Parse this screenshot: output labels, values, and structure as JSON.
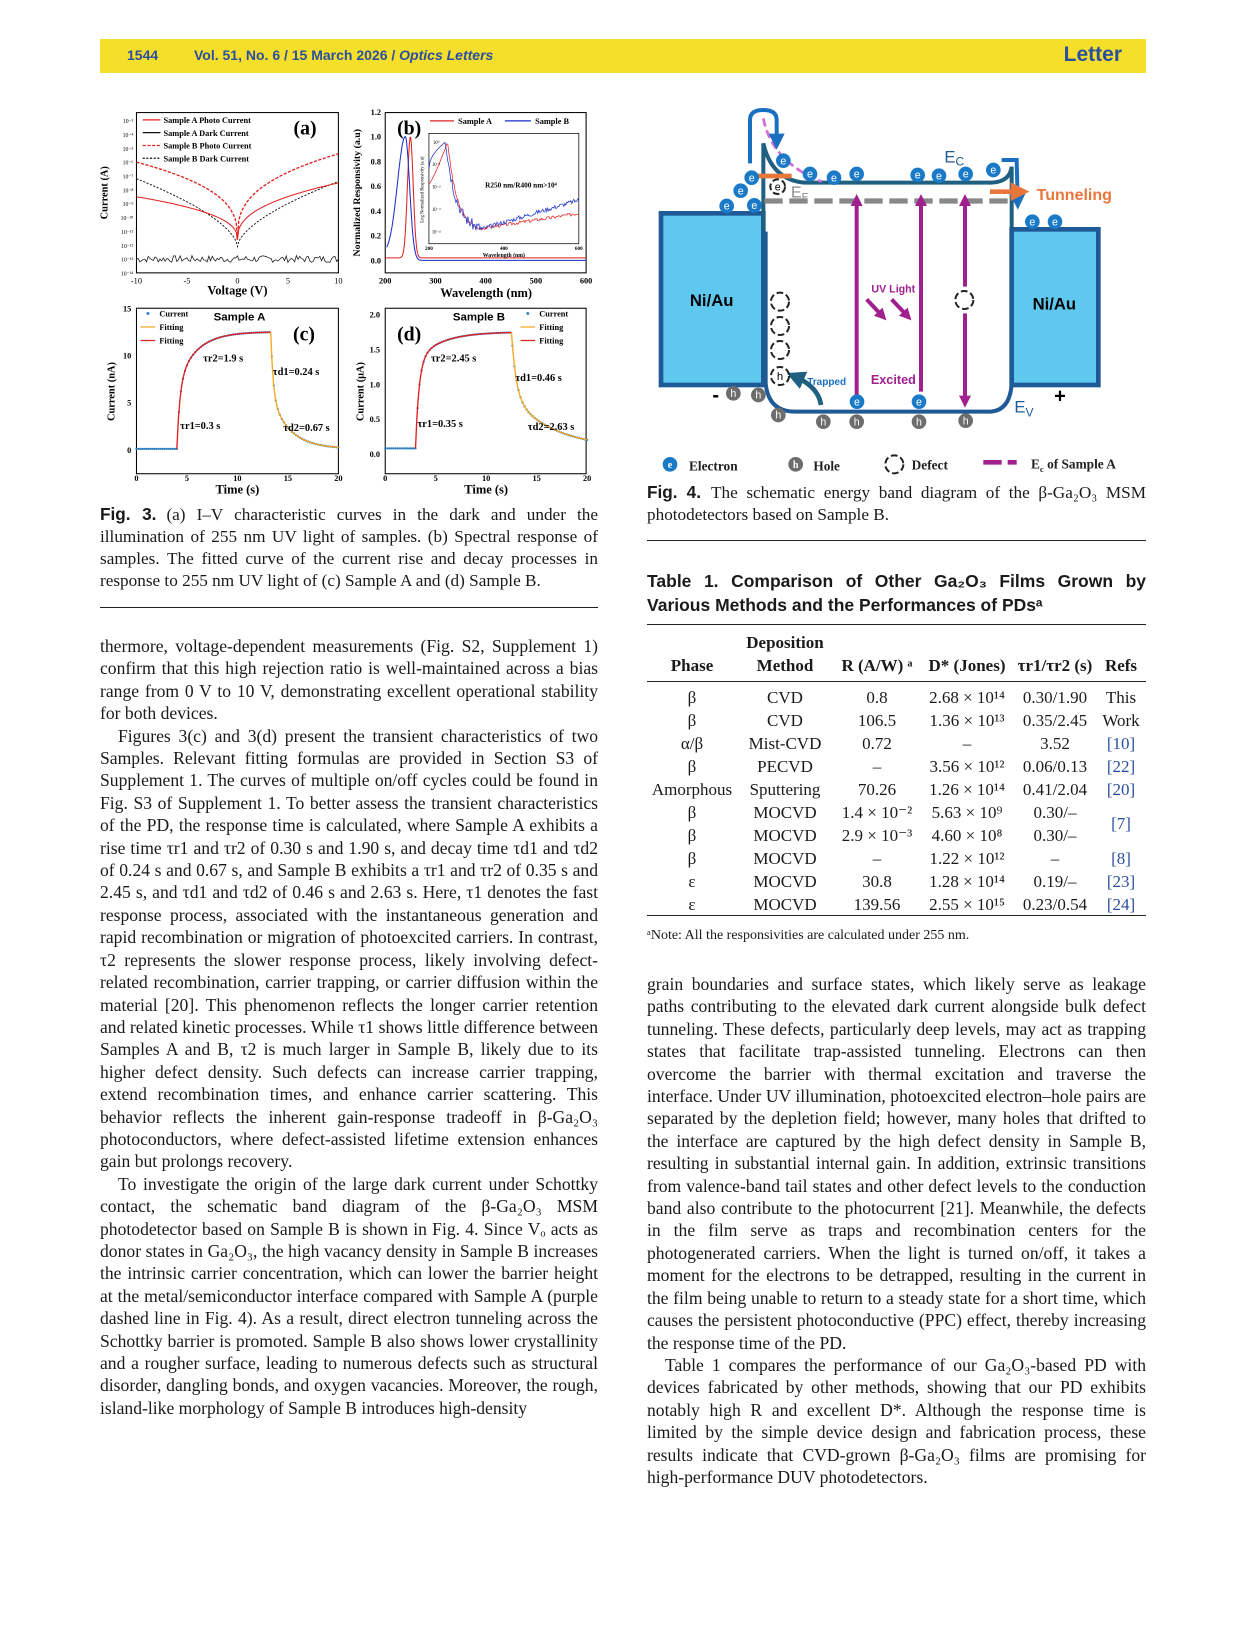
{
  "header": {
    "page": "1544",
    "volume": "Vol. 51, No. 6 / 15 March 2026 / ",
    "journal": "Optics Letters",
    "type": "Letter",
    "color": "#f5df2b"
  },
  "fig3": {
    "a": {
      "label": "(a)",
      "xlabel": "Voltage (V)",
      "ylabel": "Current (A)",
      "xticks": [
        "-10",
        "-5",
        "0",
        "5",
        "10"
      ],
      "yticks": [
        "10⁻³",
        "10⁻⁴",
        "10⁻⁵",
        "10⁻⁶",
        "10⁻⁷",
        "10⁻⁸",
        "10⁻⁹",
        "10⁻¹⁰",
        "10⁻¹¹",
        "10⁻¹²",
        "10⁻¹³",
        "10⁻¹⁴"
      ],
      "legend": [
        "Sample A Photo Current",
        "Sample A Dark Current",
        "Sample B Photo Current",
        "Sample B Dark Current"
      ]
    },
    "b": {
      "label": "(b)",
      "xlabel": "Wavelength (nm)",
      "ylabel": "Normalized Responsivity (a.u)",
      "xticks": [
        "200",
        "300",
        "400",
        "500",
        "600"
      ],
      "yticks": [
        "0.0",
        "0.2",
        "0.4",
        "0.6",
        "0.8",
        "1.0",
        "1.2"
      ],
      "legend": [
        "Sample A",
        "Sample B"
      ],
      "inset": {
        "xlabel": "Wavelength (nm)",
        "ylabel": "Log Normalized Responsivity (a.u)",
        "xticks": [
          "200",
          "400",
          "600"
        ],
        "yticks": [
          "10⁰",
          "10⁻¹",
          "10⁻²",
          "10⁻³",
          "10⁻⁴"
        ],
        "annotation": "R250 nm/R400 nm>10⁴"
      }
    },
    "c": {
      "label": "(c)",
      "title": "Sample A",
      "xlabel": "Time (s)",
      "ylabel": "Current (nA)",
      "xticks": [
        "0",
        "5",
        "10",
        "15",
        "20"
      ],
      "yticks": [
        "0",
        "5",
        "10",
        "15"
      ],
      "legend": [
        "Current",
        "Fitting",
        "Fitting"
      ],
      "annotations": [
        "τr2=1.9 s",
        "τd1=0.24 s",
        "τr1=0.3 s",
        "τd2=0.67 s"
      ]
    },
    "d": {
      "label": "(d)",
      "title": "Sample B",
      "xlabel": "Time (s)",
      "ylabel": "Current (μA)",
      "xticks": [
        "0",
        "5",
        "10",
        "15",
        "20"
      ],
      "yticks": [
        "0.0",
        "0.5",
        "1.0",
        "1.5",
        "2.0"
      ],
      "legend": [
        "Current",
        "Fitting",
        "Fitting"
      ],
      "annotations": [
        "τr2=2.45 s",
        "τd1=0.46 s",
        "τr1=0.35 s",
        "τd2=2.63 s"
      ]
    },
    "caption_label": "Fig. 3.",
    "caption": "(a) I–V characteristic curves in the dark and under the illumination of 255 nm UV light of samples. (b) Spectral response of samples. The fitted curve of the current rise and decay processes in response to 255 nm UV light of (c) Sample A and (d) Sample B."
  },
  "fig4": {
    "metal_left": "Ni/Au",
    "metal_right": "Ni/Au",
    "tunneling": "Tunneling",
    "ec": "E",
    "ec_sub": "C",
    "ef": "E",
    "ef_sub": "F",
    "ev": "E",
    "ev_sub": "V",
    "uv_light": "UV Light",
    "trapped": "Trapped",
    "excited": "Excited",
    "electron": "e",
    "hole": "h",
    "minus": "-",
    "plus": "+",
    "legend": {
      "electron": "Electron",
      "hole": "Hole",
      "defect": "Defect",
      "ec_a": "E",
      "ec_a_sub": "c",
      "ec_a_rest": " of Sample A"
    },
    "caption_label": "Fig. 4.",
    "caption": "The schematic energy band diagram of the β-Ga₂O₃ MSM photodetectors based on Sample B.",
    "colors": {
      "metal": "#5ec8ef",
      "band": "#1f5a96",
      "electron": "#1a7ac8",
      "hole": "#6d6d6d",
      "uv": "#a0208e",
      "tunneling": "#e8763a"
    }
  },
  "table1": {
    "title": "Table 1. Comparison of Other Ga₂O₃ Films Grown by Various Methods and the Performances of PDsᵃ",
    "headers": {
      "phase": "Phase",
      "method_top": "Deposition",
      "method": "Method",
      "r": "R (A/W) ᵃ",
      "d": "D* (Jones)",
      "tau": "τr1/τr2 (s)",
      "refs": "Refs"
    },
    "rows": [
      {
        "phase": "β",
        "method": "CVD",
        "r": "0.8",
        "d": "2.68 × 10¹⁴",
        "tau": "0.30/1.90",
        "ref": "This"
      },
      {
        "phase": "β",
        "method": "CVD",
        "r": "106.5",
        "d": "1.36 × 10¹³",
        "tau": "0.35/2.45",
        "ref": "Work"
      },
      {
        "phase": "α/β",
        "method": "Mist-CVD",
        "r": "0.72",
        "d": "–",
        "tau": "3.52",
        "ref": "[10]"
      },
      {
        "phase": "β",
        "method": "PECVD",
        "r": "–",
        "d": "3.56 × 10¹²",
        "tau": "0.06/0.13",
        "ref": "[22]"
      },
      {
        "phase": "Amorphous",
        "method": "Sputtering",
        "r": "70.26",
        "d": "1.26 × 10¹⁴",
        "tau": "0.41/2.04",
        "ref": "[20]"
      },
      {
        "phase": "β",
        "method": "MOCVD",
        "r": "1.4 × 10⁻²",
        "d": "5.63 × 10⁹",
        "tau": "0.30/–",
        "ref": ""
      },
      {
        "phase": "β",
        "method": "MOCVD",
        "r": "2.9 × 10⁻³",
        "d": "4.60 × 10⁸",
        "tau": "0.30/–",
        "ref": ""
      },
      {
        "phase": "β",
        "method": "MOCVD",
        "r": "–",
        "d": "1.22 × 10¹²",
        "tau": "–",
        "ref": "[8]"
      },
      {
        "phase": "ε",
        "method": "MOCVD",
        "r": "30.8",
        "d": "1.28 × 10¹⁴",
        "tau": "0.19/–",
        "ref": "[23]"
      },
      {
        "phase": "ε",
        "method": "MOCVD",
        "r": "139.56",
        "d": "2.55 × 10¹⁵",
        "tau": "0.23/0.54",
        "ref": "[24]"
      }
    ],
    "merged_ref": "[7]",
    "footnote": "ᵃNote: All the responsivities are calculated under 255 nm."
  },
  "body": {
    "left": [
      "thermore, voltage-dependent measurements (Fig. S2, Supplement 1) confirm that this high rejection ratio is well-maintained across a bias range from 0 V to 10 V, demonstrating excellent operational stability for both devices.",
      "Figures 3(c) and 3(d) present the transient characteristics of two Samples. Relevant fitting formulas are provided in Section S3 of Supplement 1. The curves of multiple on/off cycles could be found in Fig. S3 of Supplement 1. To better assess the transient characteristics of the PD, the response time is calculated, where Sample A exhibits a rise time τr1 and τr2 of 0.30 s and 1.90 s, and decay time τd1 and τd2 of 0.24 s and 0.67 s, and Sample B exhibits a τr1 and τr2 of 0.35 s and 2.45 s, and τd1 and τd2 of 0.46 s and 2.63 s. Here, τ1 denotes the fast response process, associated with the instantaneous generation and rapid recombination or migration of photoexcited carriers. In contrast, τ2 represents the slower response process, likely involving defect-related recombination, carrier trapping, or carrier diffusion within the material [20]. This phenomenon reflects the longer carrier retention and related kinetic processes. While τ1 shows little difference between Samples A and B, τ2 is much larger in Sample B, likely due to its higher defect density. Such defects can increase carrier trapping, extend recombination times, and enhance carrier scattering. This behavior reflects the inherent gain-response tradeoff in β-Ga₂O₃ photoconductors, where defect-assisted lifetime extension enhances gain but prolongs recovery.",
      "To investigate the origin of the large dark current under Schottky contact, the schematic band diagram of the β-Ga₂O₃ MSM photodetector based on Sample B is shown in Fig. 4. Since Vₒ acts as donor states in Ga₂O₃, the high vacancy density in Sample B increases the intrinsic carrier concentration, which can lower the barrier height at the metal/semiconductor interface compared with Sample A (purple dashed line in Fig. 4). As a result, direct electron tunneling across the Schottky barrier is promoted. Sample B also shows lower crystallinity and a rougher surface, leading to numerous defects such as structural disorder, dangling bonds, and oxygen vacancies. Moreover, the rough, island-like morphology of Sample B introduces high-density"
    ],
    "right": [
      "grain boundaries and surface states, which likely serve as leakage paths contributing to the elevated dark current alongside bulk defect tunneling. These defects, particularly deep levels, may act as trapping states that facilitate trap-assisted tunneling. Electrons can then overcome the barrier with thermal excitation and traverse the interface. Under UV illumination, photoexcited electron–hole pairs are separated by the depletion field; however, many holes that drifted to the interface are captured by the high defect density in Sample B, resulting in substantial internal gain. In addition, extrinsic transitions from valence-band tail states and other defect levels to the conduction band also contribute to the photocurrent [21]. Meanwhile, the defects in the film serve as traps and recombination centers for the photogenerated carriers. When the light is turned on/off, it takes a moment for the electrons to be detrapped, resulting in the current in the film being unable to return to a steady state for a short time, which causes the persistent photoconductive (PPC) effect, thereby increasing the response time of the PD.",
      "Table 1 compares the performance of our Ga₂O₃-based PD with devices fabricated by other methods, showing that our PD exhibits notably high R and excellent D*. Although the response time is limited by the simple device design and fabrication process, these results indicate that CVD-grown β-Ga₂O₃ films are promising for high-performance DUV photodetectors."
    ]
  }
}
